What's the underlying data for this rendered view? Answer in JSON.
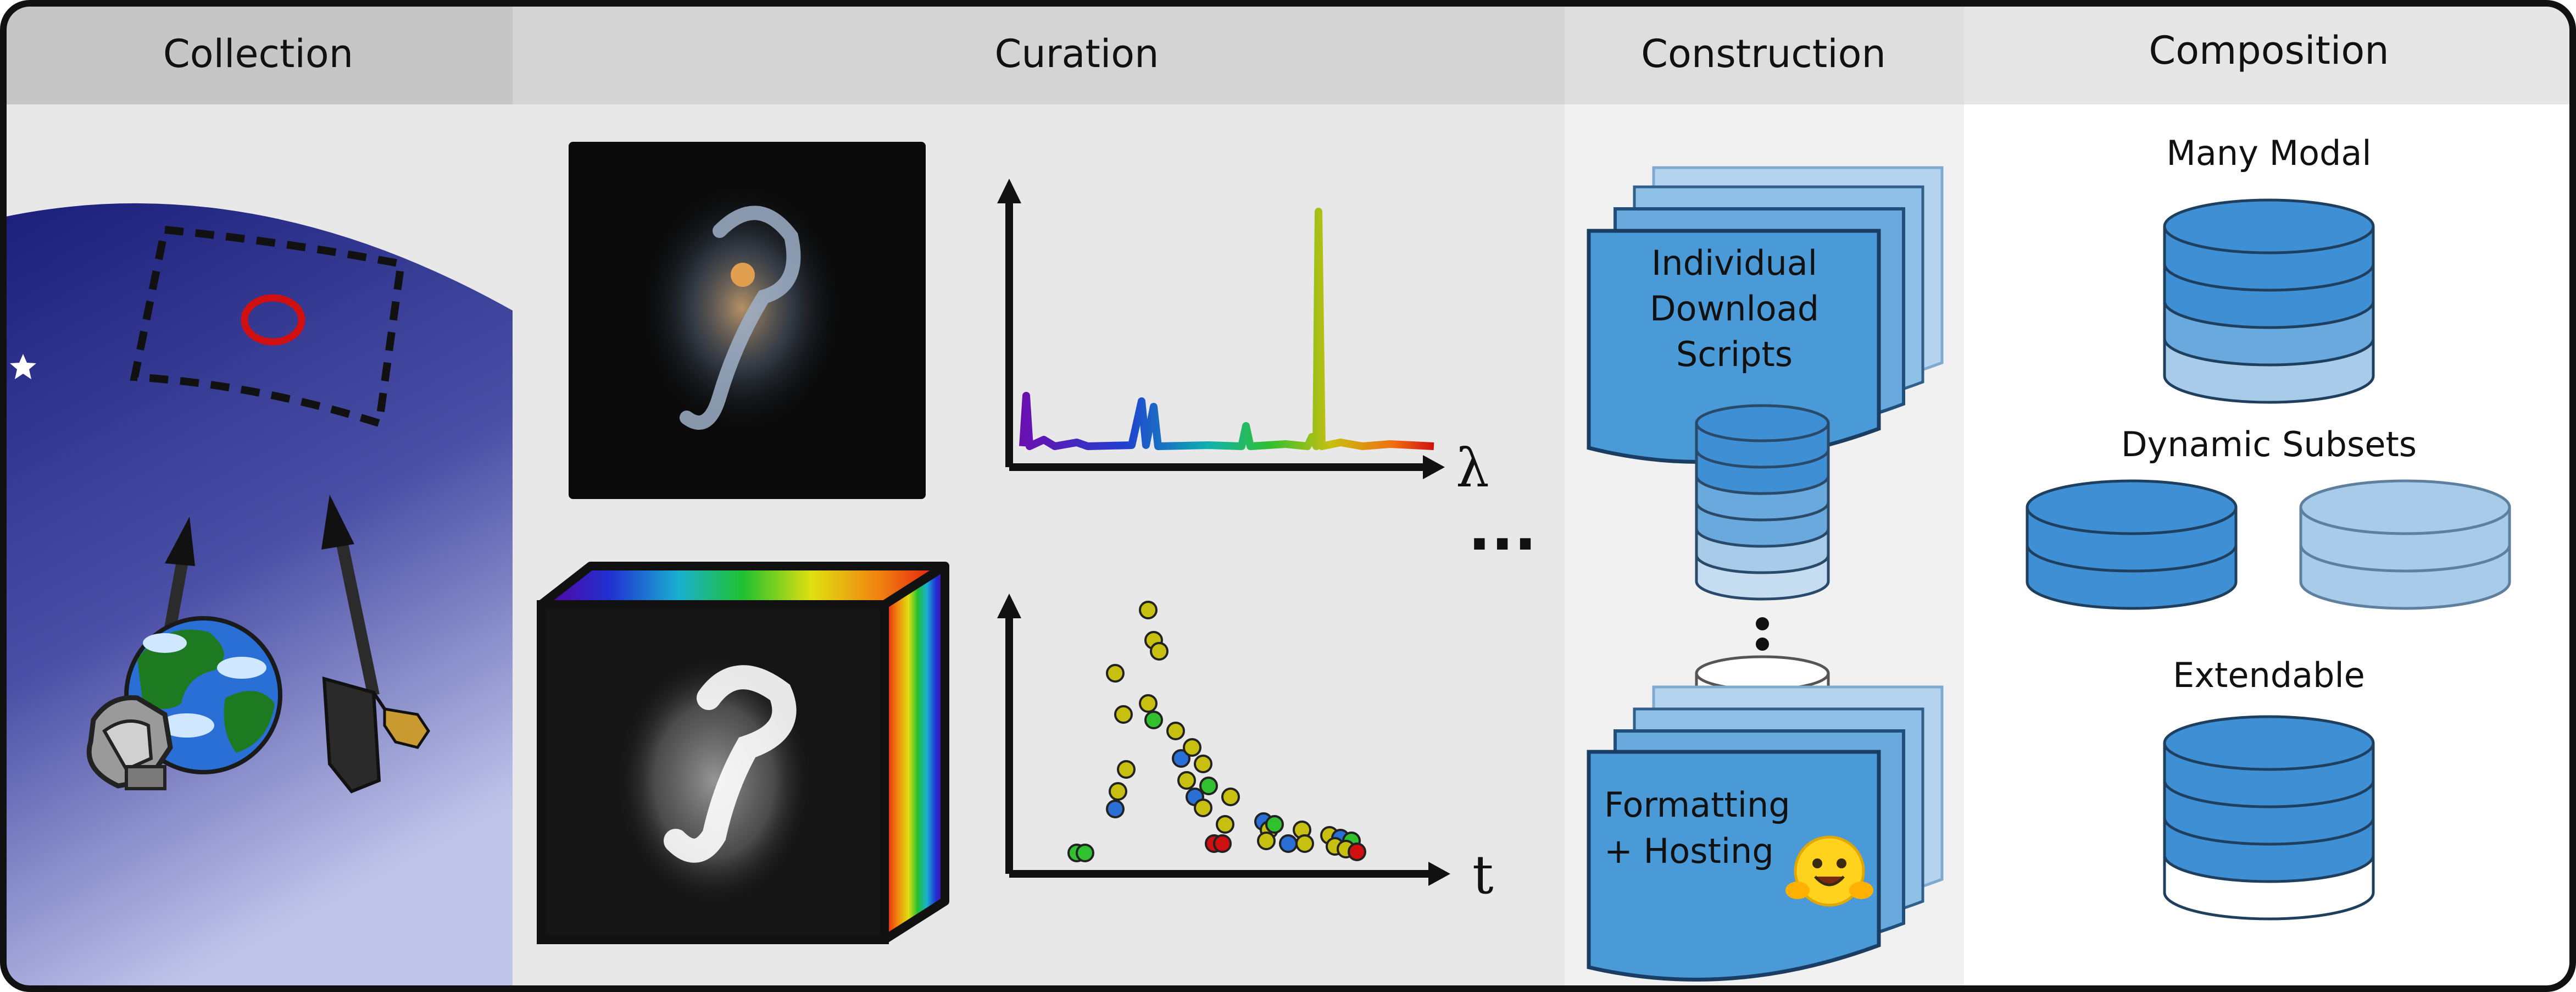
{
  "panels": {
    "collection": {
      "title": "Collection"
    },
    "curation": {
      "title": "Curation",
      "spectrum_axis_label": "λ",
      "lightcurve_axis_label": "t",
      "ellipsis": "..."
    },
    "construction": {
      "title": "Construction",
      "scripts_label": [
        "Individual",
        "Download",
        "Scripts"
      ],
      "formatting_label": [
        "Formatting",
        "+ Hosting"
      ]
    },
    "composition": {
      "title": "Composition",
      "many_modal_label": "Many Modal",
      "dynamic_subsets_label": "Dynamic Subsets",
      "extendable_label": "Extendable"
    }
  },
  "colors": {
    "header_bg": "#cccccc",
    "panel_bg": "#e8e8e8",
    "construction_bg": "#f1f1f1",
    "composition_bg": "#ffffff",
    "sky_top": "#1b1f7a",
    "sky_bottom": "#b8bce6",
    "db_dark": "#3f8fd4",
    "db_mid": "#6aa9dd",
    "db_light": "#a9cbea",
    "doc_blue": "#4a9ad8",
    "doc_light": "#b4d3ee"
  },
  "icons": [
    "star-icon",
    "telescope-ground-icon",
    "telescope-space-icon",
    "earth-icon",
    "galaxy-image-icon",
    "datacube-icon",
    "huggingface-icon",
    "database-icon"
  ]
}
